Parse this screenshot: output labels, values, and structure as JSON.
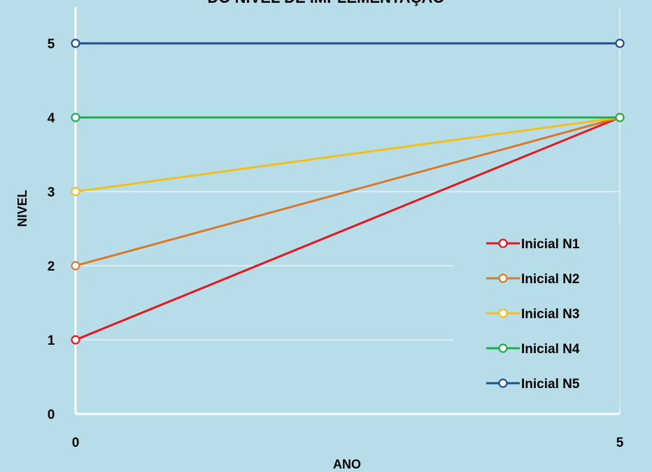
{
  "chart_data": {
    "type": "line",
    "title": "DO NÍVEL DE IMPLEMENTAÇÃO",
    "xlabel": "ANO",
    "ylabel": "NIVEL",
    "x": [
      0,
      5
    ],
    "xlim": [
      0,
      5
    ],
    "ylim": [
      0,
      5
    ],
    "x_ticks": [
      "0",
      "5"
    ],
    "y_ticks": [
      "0",
      "1",
      "2",
      "3",
      "4",
      "5"
    ],
    "grid": true,
    "legend_position": "right",
    "background_color": "#b7dde8",
    "series": [
      {
        "name": "Inicial N1",
        "values": [
          1,
          4
        ],
        "color": "#e8141b"
      },
      {
        "name": "Inicial N2",
        "values": [
          2,
          4
        ],
        "color": "#d9782a"
      },
      {
        "name": "Inicial N3",
        "values": [
          3,
          4
        ],
        "color": "#f2c01e"
      },
      {
        "name": "Inicial N4",
        "values": [
          4,
          4
        ],
        "color": "#1fad4c"
      },
      {
        "name": "Inicial N5",
        "values": [
          5,
          5
        ],
        "color": "#1f4e8c"
      }
    ]
  }
}
